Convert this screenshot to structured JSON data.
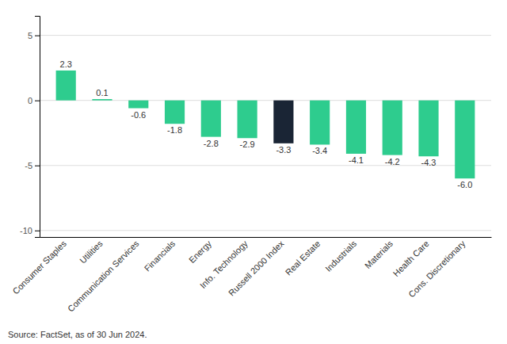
{
  "chart_data": {
    "type": "bar",
    "categories": [
      "Consumer Staples",
      "Utilities",
      "Communication Services",
      "Financials",
      "Energy",
      "Info. Technology",
      "Russell 2000 Index",
      "Real Estate",
      "Industrials",
      "Materials",
      "Health Care",
      "Cons. Discretionary"
    ],
    "values": [
      2.3,
      0.1,
      -0.6,
      -1.8,
      -2.8,
      -2.9,
      -3.3,
      -3.4,
      -4.1,
      -4.2,
      -4.3,
      -6.0
    ],
    "value_labels": [
      "2.3",
      "0.1",
      "-0.6",
      "-1.8",
      "-2.8",
      "-2.9",
      "-3.3",
      "-3.4",
      "-4.1",
      "-4.2",
      "-4.3",
      "-6.0"
    ],
    "colors": [
      "#2ecc8e",
      "#2ecc8e",
      "#2ecc8e",
      "#2ecc8e",
      "#2ecc8e",
      "#2ecc8e",
      "#1a2535",
      "#2ecc8e",
      "#2ecc8e",
      "#2ecc8e",
      "#2ecc8e",
      "#2ecc8e"
    ],
    "ylim": [
      -10.5,
      6.5
    ],
    "yticks": [
      5,
      0,
      -5,
      -10
    ],
    "grid": true,
    "data_labels": true,
    "annotations": [
      "Source: FactSet, as of 30 Jun 2024."
    ]
  }
}
